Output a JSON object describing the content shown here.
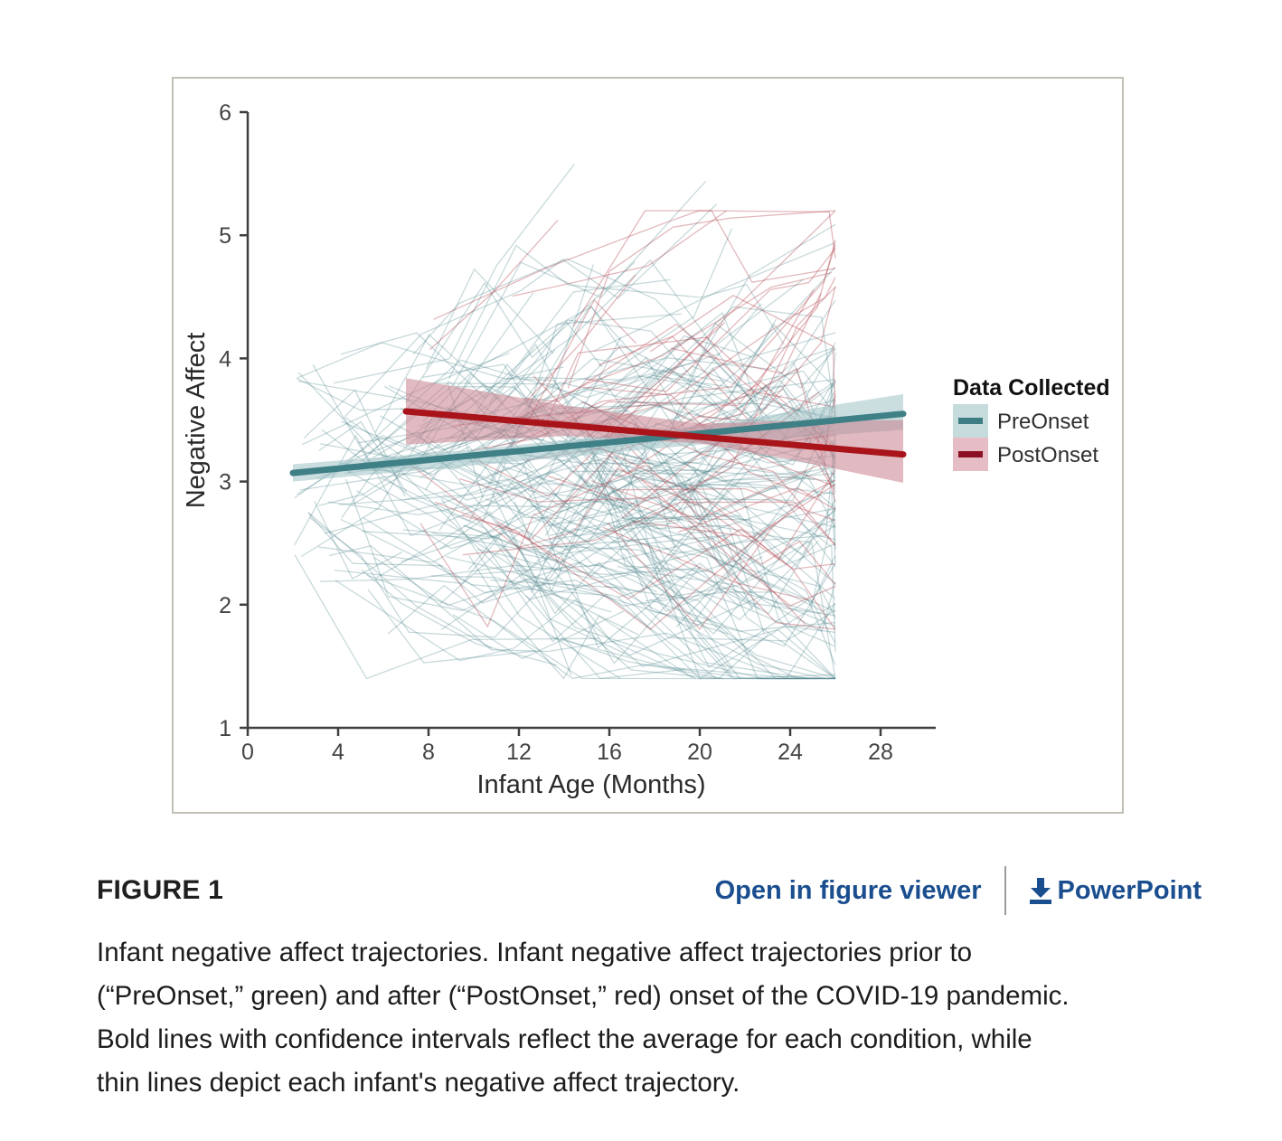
{
  "figure": {
    "label": "FIGURE 1",
    "links": {
      "open_viewer": "Open in figure viewer",
      "powerpoint": "PowerPoint"
    },
    "link_color": "#1b4e8f"
  },
  "caption": {
    "lines": [
      "Infant negative affect trajectories. Infant negative affect trajectories prior to",
      "(“PreOnset,” green) and after (“PostOnset,” red) onset of the COVID-19 pandemic.",
      "Bold lines with confidence intervals reflect the average for each condition, while",
      "thin lines depict each infant's negative affect trajectory."
    ]
  },
  "chart_data": {
    "type": "line",
    "title": "",
    "xlabel": "Infant Age (Months)",
    "ylabel": "Negative Affect",
    "xlim": [
      0,
      30.4
    ],
    "ylim": [
      1,
      6
    ],
    "xticks": [
      0,
      4,
      8,
      12,
      16,
      20,
      24,
      28
    ],
    "yticks": [
      1,
      2,
      3,
      4,
      5,
      6
    ],
    "grid": false,
    "axis_color": "#3f3f3f",
    "tick_label_color": "#444444",
    "axis_title_color": "#2a2a2a",
    "legend": {
      "title": "Data Collected",
      "position": "right",
      "entries": [
        {
          "label": "PreOnset",
          "line_color": "#3e7d83",
          "bg_color": "#c6dbdc"
        },
        {
          "label": "PostOnset",
          "line_color": "#8c1023",
          "bg_color": "#e6bdc4"
        }
      ]
    },
    "series": [
      {
        "name": "PreOnset",
        "color": "#3f7f86",
        "ribbon_color": "#9fc3c6",
        "ribbon_opacity": 0.55,
        "x": [
          2,
          29
        ],
        "y": [
          3.07,
          3.55
        ],
        "ci": [
          {
            "x": 2,
            "lo": 3.0,
            "hi": 3.14
          },
          {
            "x": 10,
            "lo": 3.13,
            "hi": 3.26
          },
          {
            "x": 20,
            "lo": 3.3,
            "hi": 3.45
          },
          {
            "x": 29,
            "lo": 3.42,
            "hi": 3.71
          }
        ]
      },
      {
        "name": "PostOnset",
        "color": "#a81419",
        "ribbon_color": "#c9808c",
        "ribbon_opacity": 0.55,
        "x": [
          7,
          29
        ],
        "y": [
          3.57,
          3.22
        ],
        "ci": [
          {
            "x": 7,
            "lo": 3.3,
            "hi": 3.84
          },
          {
            "x": 14,
            "lo": 3.37,
            "hi": 3.62
          },
          {
            "x": 20,
            "lo": 3.31,
            "hi": 3.47
          },
          {
            "x": 24,
            "lo": 3.18,
            "hi": 3.49
          },
          {
            "x": 29,
            "lo": 2.99,
            "hi": 3.5
          }
        ]
      }
    ],
    "individual_trajectories": {
      "description": "thin lines, one per infant",
      "seed": 1337,
      "preonset": {
        "count": 215,
        "color": "#4a8187",
        "opacity": 0.3,
        "month_range": [
          2,
          26
        ],
        "value_range": [
          1.4,
          5.6
        ],
        "center": 3.0,
        "spread": 1.05
      },
      "postonset": {
        "count": 46,
        "color": "#b2454f",
        "opacity": 0.38,
        "month_range": [
          7,
          26
        ],
        "value_range": [
          1.8,
          5.2
        ],
        "center": 3.35,
        "spread": 0.95
      }
    }
  }
}
